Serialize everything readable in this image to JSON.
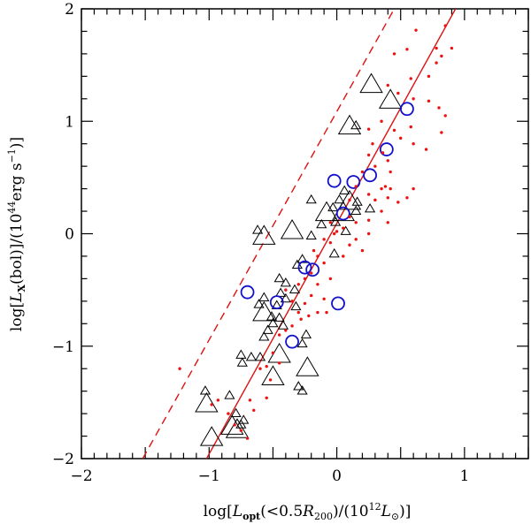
{
  "chart_data": {
    "type": "scatter",
    "xlabel": "log[L_opt(<0.5R_200)/(10^12 L_sun)]",
    "ylabel": "log[L_X(bol)]/(10^44 erg s^-1)]",
    "xlabel_parts": {
      "a": "log[",
      "b": "L",
      "c": "opt",
      "d": "(<0.5",
      "e": "R",
      "f": "200",
      "g": ")/(10",
      "h": "12",
      "i": "L",
      "j": "⊙",
      "k": ")]"
    },
    "ylabel_parts": {
      "a": "log[",
      "b": "L",
      "c": "X",
      "d": "(bol)]/(10",
      "e": "44",
      "f": "erg  s",
      "g": "−1",
      "h": ")]"
    },
    "xlim": [
      -2,
      1.5
    ],
    "ylim": [
      -2,
      2
    ],
    "xticks": [
      {
        "v": -2,
        "label": "−2"
      },
      {
        "v": -1,
        "label": "−1"
      },
      {
        "v": 0,
        "label": "0"
      },
      {
        "v": 1,
        "label": "1"
      }
    ],
    "yticks": [
      {
        "v": -2,
        "label": "−2"
      },
      {
        "v": -1,
        "label": "−1"
      },
      {
        "v": 0,
        "label": "0"
      },
      {
        "v": 1,
        "label": "1"
      },
      {
        "v": 2,
        "label": "2"
      }
    ],
    "colors": {
      "axes": "#000000",
      "dots": "#ee1111",
      "lines": "#dd1111",
      "circles": "#1111cc",
      "triangles": "#000000"
    },
    "lines": [
      {
        "name": "best-fit",
        "style": "solid",
        "x": [
          -1.02,
          0.93
        ],
        "y": [
          -2.0,
          2.0
        ]
      },
      {
        "name": "offset-fit",
        "style": "dashed",
        "x": [
          -1.52,
          0.45
        ],
        "y": [
          -2.0,
          2.0
        ]
      }
    ],
    "series": [
      {
        "name": "large-triangles",
        "marker": "triangle",
        "size": "large",
        "points": [
          [
            -0.78,
            -1.75
          ],
          [
            -0.82,
            -1.72
          ],
          [
            -0.98,
            -1.82
          ],
          [
            -1.02,
            -1.52
          ],
          [
            -0.5,
            -1.28
          ],
          [
            -0.45,
            -1.08
          ],
          [
            -0.23,
            -1.2
          ],
          [
            -0.57,
            -0.71
          ],
          [
            -0.57,
            -0.03
          ],
          [
            -0.35,
            0.02
          ],
          [
            -0.08,
            0.18
          ],
          [
            0.05,
            0.18
          ],
          [
            0.1,
            0.28
          ],
          [
            0.27,
            1.32
          ],
          [
            0.1,
            0.95
          ],
          [
            0.42,
            1.18
          ]
        ]
      },
      {
        "name": "small-triangles",
        "marker": "triangle",
        "size": "small",
        "points": [
          [
            -0.75,
            -1.7
          ],
          [
            -0.73,
            -1.66
          ],
          [
            -0.79,
            -1.6
          ],
          [
            -1.03,
            -1.4
          ],
          [
            -0.84,
            -1.44
          ],
          [
            -0.74,
            -1.15
          ],
          [
            -0.75,
            -1.08
          ],
          [
            -0.67,
            -1.1
          ],
          [
            -0.6,
            -1.1
          ],
          [
            -0.57,
            -0.92
          ],
          [
            -0.54,
            -0.86
          ],
          [
            -0.5,
            -0.8
          ],
          [
            -0.42,
            -0.82
          ],
          [
            -0.51,
            -0.74
          ],
          [
            -0.47,
            -0.64
          ],
          [
            -0.44,
            -0.53
          ],
          [
            -0.4,
            -0.58
          ],
          [
            -0.33,
            -0.5
          ],
          [
            -0.31,
            -0.28
          ],
          [
            -0.27,
            -0.23
          ],
          [
            -0.32,
            -0.65
          ],
          [
            -0.45,
            -0.4
          ],
          [
            -0.4,
            -0.44
          ],
          [
            -0.45,
            -0.75
          ],
          [
            -0.61,
            -0.63
          ],
          [
            -0.57,
            -0.57
          ],
          [
            -0.3,
            -1.36
          ],
          [
            -0.27,
            -0.98
          ],
          [
            -0.24,
            -0.9
          ],
          [
            -0.2,
            -0.02
          ],
          [
            -0.12,
            0.08
          ],
          [
            -0.03,
            0.23
          ],
          [
            0.02,
            0.3
          ],
          [
            -0.01,
            0.1
          ],
          [
            0.07,
            0.02
          ],
          [
            0.16,
            0.28
          ],
          [
            0.06,
            0.38
          ],
          [
            0.15,
            0.2
          ],
          [
            0.26,
            0.22
          ],
          [
            -0.02,
            -0.18
          ],
          [
            -0.2,
            0.3
          ],
          [
            0.15,
            0.96
          ],
          [
            -0.27,
            -1.4
          ],
          [
            -0.62,
            0.03
          ]
        ]
      },
      {
        "name": "blue-circles",
        "marker": "circle",
        "points": [
          [
            -0.7,
            -0.52
          ],
          [
            -0.47,
            -0.61
          ],
          [
            -0.25,
            -0.3
          ],
          [
            -0.19,
            -0.32
          ],
          [
            0.01,
            -0.62
          ],
          [
            -0.35,
            -0.96
          ],
          [
            0.05,
            0.18
          ],
          [
            -0.02,
            0.47
          ],
          [
            0.13,
            0.46
          ],
          [
            0.26,
            0.52
          ],
          [
            0.39,
            0.75
          ],
          [
            0.55,
            1.11
          ]
        ]
      },
      {
        "name": "red-dots",
        "marker": "dot",
        "points": [
          [
            0.85,
            1.85
          ],
          [
            0.62,
            1.81
          ],
          [
            0.55,
            1.64
          ],
          [
            0.78,
            1.65
          ],
          [
            0.82,
            1.58
          ],
          [
            0.9,
            1.65
          ],
          [
            0.45,
            1.6
          ],
          [
            0.58,
            1.38
          ],
          [
            0.72,
            1.4
          ],
          [
            0.78,
            1.52
          ],
          [
            0.6,
            1.2
          ],
          [
            0.72,
            1.18
          ],
          [
            0.8,
            1.12
          ],
          [
            0.85,
            1.05
          ],
          [
            0.4,
            1.32
          ],
          [
            0.48,
            1.25
          ],
          [
            0.35,
            1.0
          ],
          [
            0.25,
            0.93
          ],
          [
            0.28,
            0.8
          ],
          [
            0.45,
            0.92
          ],
          [
            0.36,
            0.72
          ],
          [
            0.4,
            0.65
          ],
          [
            0.3,
            0.6
          ],
          [
            0.2,
            0.55
          ],
          [
            0.35,
            0.4
          ],
          [
            0.38,
            0.42
          ],
          [
            0.42,
            0.4
          ],
          [
            0.25,
            0.35
          ],
          [
            0.3,
            0.3
          ],
          [
            0.4,
            0.32
          ],
          [
            0.48,
            0.28
          ],
          [
            0.15,
            0.42
          ],
          [
            0.1,
            0.3
          ],
          [
            0.05,
            0.05
          ],
          [
            0.0,
            0.02
          ],
          [
            -0.05,
            -0.08
          ],
          [
            0.15,
            -0.05
          ],
          [
            0.2,
            -0.15
          ],
          [
            0.35,
            0.2
          ],
          [
            0.15,
            0.1
          ],
          [
            -0.1,
            -0.05
          ],
          [
            -0.15,
            -0.2
          ],
          [
            -0.1,
            -0.26
          ],
          [
            -0.2,
            -0.35
          ],
          [
            -0.25,
            -0.4
          ],
          [
            -0.15,
            -0.45
          ],
          [
            -0.2,
            -0.55
          ],
          [
            -0.25,
            -0.62
          ],
          [
            -0.3,
            -0.7
          ],
          [
            -0.35,
            -0.6
          ],
          [
            -0.4,
            -0.5
          ],
          [
            -0.1,
            -0.58
          ],
          [
            -0.05,
            -0.4
          ],
          [
            0.05,
            -0.2
          ],
          [
            -0.3,
            -0.45
          ],
          [
            -0.35,
            -0.82
          ],
          [
            -0.28,
            -0.76
          ],
          [
            -0.4,
            -0.86
          ],
          [
            -0.08,
            -0.7
          ],
          [
            -0.15,
            -0.7
          ],
          [
            -0.22,
            -0.73
          ],
          [
            -0.45,
            -0.9
          ],
          [
            -0.5,
            -1.06
          ],
          [
            -0.55,
            -1.18
          ],
          [
            -0.6,
            -1.2
          ],
          [
            -0.68,
            -1.48
          ],
          [
            -0.55,
            -1.46
          ],
          [
            -0.65,
            -1.57
          ],
          [
            -0.7,
            -1.82
          ],
          [
            -0.75,
            -1.75
          ],
          [
            -0.8,
            -1.7
          ],
          [
            -1.23,
            -1.2
          ],
          [
            -0.93,
            -1.48
          ],
          [
            -0.98,
            -1.52
          ],
          [
            0.1,
            -0.1
          ],
          [
            0.25,
            0.0
          ],
          [
            0.25,
            0.12
          ],
          [
            0.1,
            0.15
          ],
          [
            -0.05,
            0.1
          ],
          [
            0.4,
            0.1
          ],
          [
            0.42,
            0.55
          ],
          [
            0.55,
            0.32
          ],
          [
            0.6,
            0.4
          ],
          [
            0.5,
            0.85
          ],
          [
            0.58,
            0.95
          ],
          [
            0.7,
            0.75
          ],
          [
            0.82,
            0.9
          ],
          [
            0.25,
            0.7
          ],
          [
            0.6,
            0.8
          ],
          [
            -0.02,
            0.0
          ],
          [
            -0.18,
            -0.15
          ],
          [
            -0.45,
            -1.15
          ],
          [
            -0.52,
            -1.3
          ],
          [
            -0.85,
            -1.6
          ]
        ]
      }
    ]
  }
}
